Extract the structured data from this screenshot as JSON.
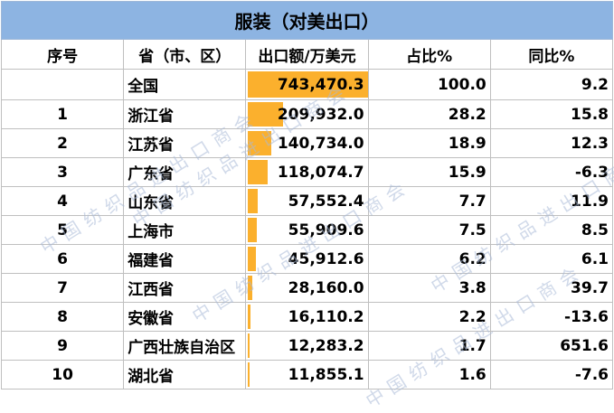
{
  "title": "服装（对美出口）",
  "headers": {
    "rank": "序号",
    "region": "省（市、区）",
    "value": "出口额/万美元",
    "share": "占比%",
    "yoy": "同比%"
  },
  "watermark_text": "中国纺织品进出口商会",
  "max_value": 743470.3,
  "rows": [
    {
      "rank": "",
      "region": "全国",
      "value": "743,470.3",
      "value_num": 743470.3,
      "share": "100.0",
      "yoy": "9.2"
    },
    {
      "rank": "1",
      "region": "浙江省",
      "value": "209,932.0",
      "value_num": 209932.0,
      "share": "28.2",
      "yoy": "15.8"
    },
    {
      "rank": "2",
      "region": "江苏省",
      "value": "140,734.0",
      "value_num": 140734.0,
      "share": "18.9",
      "yoy": "12.3"
    },
    {
      "rank": "3",
      "region": "广东省",
      "value": "118,074.7",
      "value_num": 118074.7,
      "share": "15.9",
      "yoy": "-6.3"
    },
    {
      "rank": "4",
      "region": "山东省",
      "value": "57,552.4",
      "value_num": 57552.4,
      "share": "7.7",
      "yoy": "11.9"
    },
    {
      "rank": "5",
      "region": "上海市",
      "value": "55,909.6",
      "value_num": 55909.6,
      "share": "7.5",
      "yoy": "8.5"
    },
    {
      "rank": "6",
      "region": "福建省",
      "value": "45,912.6",
      "value_num": 45912.6,
      "share": "6.2",
      "yoy": "6.1"
    },
    {
      "rank": "7",
      "region": "江西省",
      "value": "28,160.0",
      "value_num": 28160.0,
      "share": "3.8",
      "yoy": "39.7"
    },
    {
      "rank": "8",
      "region": "安徽省",
      "value": "16,110.2",
      "value_num": 16110.2,
      "share": "2.2",
      "yoy": "-13.6"
    },
    {
      "rank": "9",
      "region": "广西壮族自治区",
      "value": "12,283.2",
      "value_num": 12283.2,
      "share": "1.7",
      "yoy": "651.6"
    },
    {
      "rank": "10",
      "region": "湖北省",
      "value": "11,855.1",
      "value_num": 11855.1,
      "share": "1.6",
      "yoy": "-7.6"
    }
  ],
  "colors": {
    "title_bg": "#8db4e2",
    "bar": "#fbb02d",
    "grid": "#bfbfbf"
  }
}
